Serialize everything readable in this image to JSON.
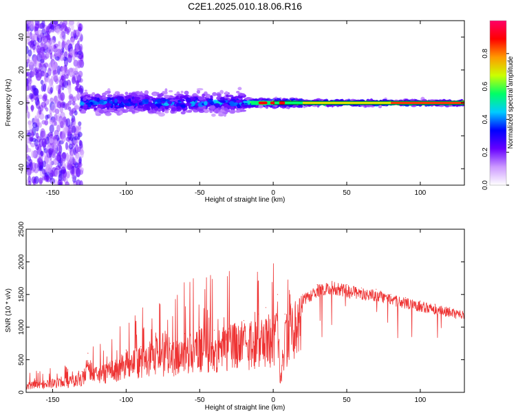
{
  "title": "C2E1.2025.010.18.06.R16",
  "chart_data": [
    {
      "type": "heatmap",
      "xlabel": "Height of straight line (km)",
      "ylabel": "Frequency (Hz)",
      "xlim": [
        -168,
        130
      ],
      "ylim": [
        -50,
        50
      ],
      "xticks": [
        -150,
        -100,
        -50,
        0,
        50,
        100
      ],
      "xtick_labels": [
        "-150",
        "-100",
        "-50",
        "0",
        "50",
        "100"
      ],
      "yticks": [
        -40,
        -20,
        0,
        20,
        40
      ],
      "ytick_labels": [
        "-40",
        "-20",
        "0",
        "20",
        "40"
      ],
      "colorbar": {
        "label": "Normalized spectral amplitude",
        "range": [
          0,
          1
        ],
        "ticks": [
          0.0,
          0.2,
          0.4,
          0.6,
          0.8
        ],
        "tick_labels": [
          "0.0",
          "0.2",
          "0.4",
          "0.6",
          "0.8"
        ],
        "colormap": [
          "#ffffff",
          "#cc99ff",
          "#6600ff",
          "#0000ff",
          "#00ccff",
          "#00ff66",
          "#ccff00",
          "#ff9900",
          "#ff0000",
          "#ff0066"
        ]
      },
      "description_bands": [
        {
          "x_range": [
            -168,
            -130
          ],
          "freq_spread_hz": 50,
          "max_amplitude": 0.2
        },
        {
          "x_range": [
            -130,
            -20
          ],
          "freq_spread_hz": 6,
          "max_amplitude": 0.45
        },
        {
          "x_range": [
            -20,
            20
          ],
          "freq_spread_hz": 2,
          "max_amplitude": 0.85
        },
        {
          "x_range": [
            20,
            130
          ],
          "freq_spread_hz": 1.5,
          "max_amplitude": 0.75
        }
      ],
      "grid": false
    },
    {
      "type": "line",
      "xlabel": "Height of straight line (km)",
      "ylabel": "SNR (10 * v/v)",
      "xlim": [
        -168,
        130
      ],
      "ylim": [
        0,
        2500
      ],
      "xticks": [
        -150,
        -100,
        -50,
        0,
        50,
        100
      ],
      "xtick_labels": [
        "-150",
        "-100",
        "-50",
        "0",
        "50",
        "100"
      ],
      "yticks": [
        0,
        500,
        1000,
        1500,
        2000,
        2500
      ],
      "ytick_labels": [
        "0",
        "500",
        "1000",
        "1500",
        "2000",
        "2500"
      ],
      "color": "#ee3333",
      "series": [
        {
          "x": [
            -168,
            -160,
            -150,
            -140,
            -130,
            -126,
            -120,
            -110,
            -100,
            -90,
            -80,
            -70,
            -60,
            -50,
            -40,
            -30,
            -20,
            -10,
            -5,
            0,
            3,
            5,
            8,
            12,
            20,
            30,
            40,
            50,
            60,
            70,
            80,
            90,
            100,
            110,
            120,
            130
          ],
          "values": [
            150,
            180,
            200,
            230,
            320,
            600,
            380,
            480,
            650,
            700,
            850,
            750,
            900,
            1000,
            950,
            1050,
            1100,
            1200,
            1300,
            1050,
            1500,
            250,
            1200,
            1350,
            1500,
            1650,
            1700,
            1650,
            1600,
            1580,
            1500,
            1450,
            1400,
            1350,
            1300,
            1250
          ]
        }
      ],
      "grid": false
    }
  ]
}
